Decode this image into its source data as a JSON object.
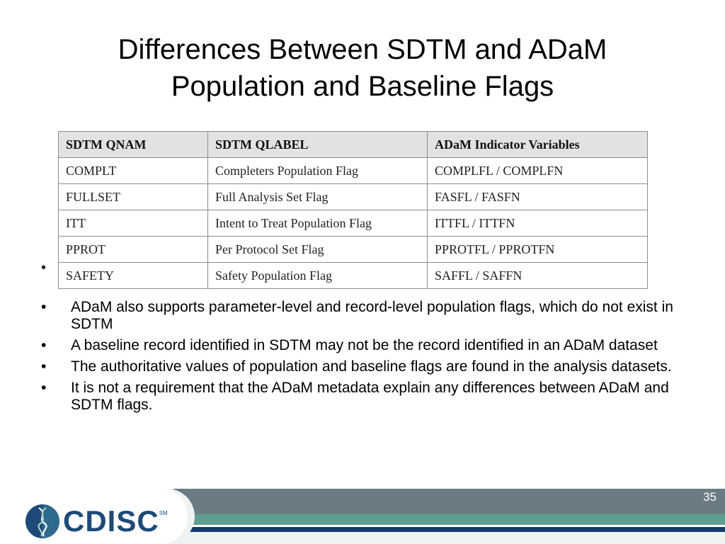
{
  "slide": {
    "title_line1": "Differences Between SDTM and ADaM",
    "title_line2": "Population and Baseline Flags",
    "page_number": "35"
  },
  "table": {
    "headers": [
      "SDTM QNAM",
      "SDTM QLABEL",
      "ADaM Indicator Variables"
    ],
    "rows": [
      [
        "COMPLT",
        "Completers Population Flag",
        "COMPLFL / COMPLFN"
      ],
      [
        "FULLSET",
        "Full Analysis Set Flag",
        "FASFL / FASFN"
      ],
      [
        "ITT",
        "Intent to Treat Population Flag",
        "ITTFL / ITTFN"
      ],
      [
        "PPROT",
        "Per Protocol Set Flag",
        "PPROTFL / PPROTFN"
      ],
      [
        "SAFETY",
        "Safety Population Flag",
        "SAFFL / SAFFN"
      ]
    ]
  },
  "stray_bullet": "•",
  "bullets": [
    {
      "marker": "•",
      "text": "ADaM also supports parameter-level and record-level population flags, which do not exist in SDTM"
    },
    {
      "marker": "•",
      "text": "A baseline record identified in SDTM may not be the record identified in an ADaM dataset"
    },
    {
      "marker": "•",
      "text": "The authoritative values of population and baseline flags are found in the analysis datasets."
    },
    {
      "marker": "•",
      "text": "It is not a requirement that the ADaM metadata explain any differences between ADaM and SDTM flags."
    }
  ],
  "logo": {
    "text": "CDISC",
    "mark": "SM",
    "icon": "cdisc-helix-icon",
    "colors": {
      "primary": "#1d4a78",
      "accent": "#5e9e92"
    }
  },
  "footer_colors": {
    "gray": "#6a7b84",
    "teal": "#5e9e92",
    "navy": "#143a66"
  }
}
